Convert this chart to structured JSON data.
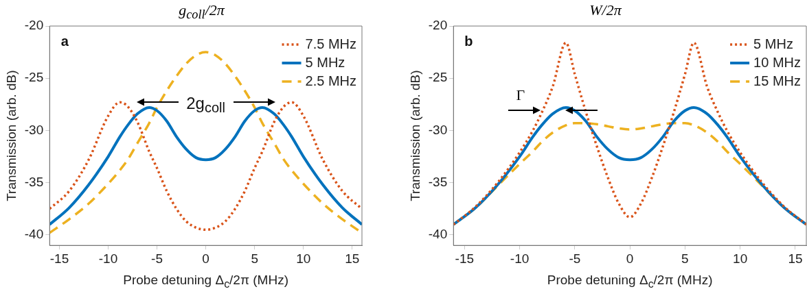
{
  "chart_data": [
    {
      "type": "line",
      "title": "g$_{coll}$/2π",
      "xlabel": "Probe detuning Δ$_{c}$/2π (MHz)",
      "ylabel": "Transmission (arb. dB)",
      "x": [
        -16,
        -14,
        -12,
        -10,
        -8.8,
        -8,
        -7,
        -5.8,
        -5,
        -4,
        -3,
        -2,
        -1,
        0,
        1,
        2,
        3,
        4,
        5,
        5.8,
        7,
        8,
        8.8,
        10,
        12,
        14,
        16
      ],
      "series": [
        {
          "name": "7.5 MHz",
          "color": "#d95319",
          "line_style": "dotted",
          "values": [
            -37.5,
            -35.8,
            -32.8,
            -28.6,
            -27.3,
            -27.7,
            -29.2,
            -32,
            -33.6,
            -35.8,
            -37.5,
            -38.7,
            -39.3,
            -39.5,
            -39.3,
            -38.7,
            -37.5,
            -35.8,
            -33.6,
            -32,
            -29.2,
            -27.7,
            -27.3,
            -28.6,
            -32.8,
            -35.8,
            -37.5
          ]
        },
        {
          "name": "5 MHz",
          "color": "#0072bd",
          "line_style": "solid",
          "values": [
            -39,
            -37.4,
            -35.2,
            -32.5,
            -30.6,
            -29.5,
            -28.4,
            -27.8,
            -28.1,
            -29.1,
            -30.6,
            -31.8,
            -32.6,
            -32.8,
            -32.6,
            -31.8,
            -30.6,
            -29.1,
            -28.1,
            -27.8,
            -28.4,
            -29.5,
            -30.6,
            -32.5,
            -35.2,
            -37.4,
            -39
          ]
        },
        {
          "name": "2.5 MHz",
          "color": "#edb120",
          "line_style": "dashed",
          "values": [
            -39.8,
            -38.5,
            -37,
            -35.1,
            -33.8,
            -32.8,
            -31.2,
            -29.3,
            -27.8,
            -26.2,
            -24.8,
            -23.6,
            -22.8,
            -22.5,
            -22.8,
            -23.6,
            -24.8,
            -26.2,
            -27.8,
            -29.3,
            -31.2,
            -32.8,
            -33.8,
            -35.1,
            -37,
            -38.5,
            -39.8
          ]
        }
      ],
      "xlim": [
        -16,
        16
      ],
      "xticks": [
        -15,
        -10,
        -5,
        0,
        5,
        10,
        15
      ],
      "ylim": [
        -41,
        -20
      ],
      "yticks": [
        -40,
        -35,
        -30,
        -25,
        -20
      ],
      "grid": false,
      "legend": "top right",
      "annotations": [
        "a",
        "2g$_{coll}$"
      ]
    },
    {
      "type": "line",
      "title": "W/2π",
      "xlabel": "Probe detuning Δ$_{c}$/2π (MHz)",
      "ylabel": "Transmission (arb. dB)",
      "x": [
        -16,
        -14,
        -12,
        -10,
        -8.8,
        -8,
        -7,
        -5.8,
        -5,
        -4,
        -3,
        -2,
        -1,
        0,
        1,
        2,
        3,
        4,
        5,
        5.8,
        7,
        8,
        8.8,
        10,
        12,
        14,
        16
      ],
      "series": [
        {
          "name": "5 MHz",
          "color": "#d95319",
          "line_style": "dotted",
          "values": [
            -39,
            -37.3,
            -35,
            -32.1,
            -30,
            -28.3,
            -25.8,
            -21.6,
            -24.6,
            -28.2,
            -31.5,
            -34.5,
            -37,
            -38.3,
            -37,
            -34.5,
            -31.5,
            -28.2,
            -24.6,
            -21.6,
            -25.8,
            -28.3,
            -30,
            -32.1,
            -35,
            -37.3,
            -39
          ]
        },
        {
          "name": "10 MHz",
          "color": "#0072bd",
          "line_style": "solid",
          "values": [
            -39,
            -37.4,
            -35.2,
            -32.5,
            -30.6,
            -29.5,
            -28.4,
            -27.8,
            -28.1,
            -29.1,
            -30.6,
            -31.8,
            -32.6,
            -32.8,
            -32.6,
            -31.8,
            -30.6,
            -29.1,
            -28.1,
            -27.8,
            -28.4,
            -29.5,
            -30.6,
            -32.5,
            -35.2,
            -37.4,
            -39
          ]
        },
        {
          "name": "15 MHz",
          "color": "#edb120",
          "line_style": "dashed",
          "values": [
            -39,
            -37.4,
            -35.3,
            -33.2,
            -32,
            -31.1,
            -30.2,
            -29.5,
            -29.3,
            -29.3,
            -29.4,
            -29.6,
            -29.8,
            -29.9,
            -29.8,
            -29.6,
            -29.4,
            -29.3,
            -29.3,
            -29.5,
            -30.2,
            -31.1,
            -32,
            -33.2,
            -35.3,
            -37.4,
            -39
          ]
        }
      ],
      "xlim": [
        -16,
        16
      ],
      "xticks": [
        -15,
        -10,
        -5,
        0,
        5,
        10,
        15
      ],
      "ylim": [
        -41,
        -20
      ],
      "yticks": [
        -40,
        -35,
        -30,
        -25,
        -20
      ],
      "grid": false,
      "legend": "top right",
      "annotations": [
        "b",
        "Γ"
      ]
    }
  ]
}
